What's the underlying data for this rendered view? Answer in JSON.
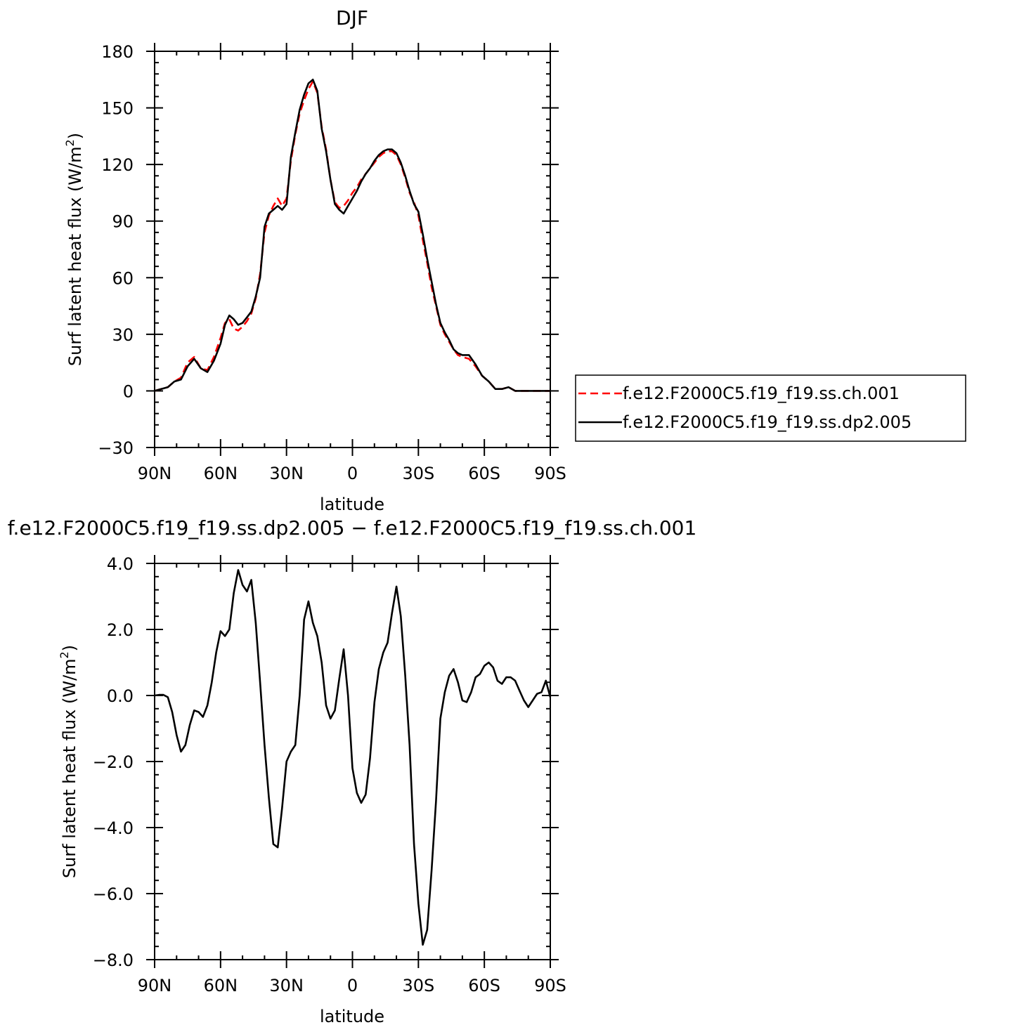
{
  "chart_data": [
    {
      "type": "line",
      "title": "DJF",
      "xlabel": "latitude",
      "ylabel_main": "Surf latent heat flux",
      "ylabel_units": "(W/m",
      "ylabel_sup": "2",
      "ylabel_close": ")",
      "xlim": [
        -90,
        90
      ],
      "ylim": [
        -30,
        180
      ],
      "x_ticks": [
        {
          "value": -90,
          "label": "90N"
        },
        {
          "value": -60,
          "label": "60N"
        },
        {
          "value": -30,
          "label": "30N"
        },
        {
          "value": 0,
          "label": "0"
        },
        {
          "value": 30,
          "label": "30S"
        },
        {
          "value": 60,
          "label": "60S"
        },
        {
          "value": 90,
          "label": "90S"
        }
      ],
      "y_ticks": [
        {
          "value": -30,
          "label": "−30"
        },
        {
          "value": 0,
          "label": "0"
        },
        {
          "value": 30,
          "label": "30"
        },
        {
          "value": 60,
          "label": "60"
        },
        {
          "value": 90,
          "label": "90"
        },
        {
          "value": 120,
          "label": "120"
        },
        {
          "value": 150,
          "label": "150"
        },
        {
          "value": 180,
          "label": "180"
        }
      ],
      "legend_placement": "right",
      "series": [
        {
          "name": "f.e12.F2000C5.f19_f19.ss.ch.001",
          "color": "#ff0000",
          "dash": "dashed",
          "x": [
            -90,
            -87,
            -84,
            -81,
            -78,
            -75,
            -72,
            -69,
            -66,
            -63,
            -60,
            -58,
            -56,
            -54,
            -52,
            -50,
            -48,
            -46,
            -44,
            -42,
            -40,
            -38,
            -36,
            -34,
            -32,
            -30,
            -28,
            -26,
            -24,
            -22,
            -20,
            -18,
            -16,
            -14,
            -12,
            -10,
            -8,
            -6,
            -4,
            -2,
            0,
            2,
            4,
            6,
            8,
            10,
            12,
            14,
            16,
            18,
            20,
            22,
            24,
            26,
            28,
            30,
            32,
            34,
            36,
            38,
            40,
            42,
            44,
            46,
            48,
            50,
            53,
            56,
            59,
            62,
            65,
            68,
            71,
            74,
            77,
            80,
            83,
            86,
            90
          ],
          "y": [
            0,
            1,
            2,
            5,
            7,
            15,
            18,
            12,
            11,
            18,
            28,
            36,
            38,
            33,
            32,
            34,
            37,
            41,
            49,
            62,
            84,
            93,
            98,
            102,
            98,
            102,
            122,
            136,
            147,
            154,
            160,
            164,
            158,
            140,
            128,
            112,
            100,
            97,
            98,
            101,
            105,
            108,
            112,
            115,
            118,
            121,
            124,
            126,
            127,
            127,
            125,
            120,
            113,
            105,
            100,
            93,
            80,
            68,
            55,
            45,
            35,
            30,
            26,
            22,
            19,
            18,
            17,
            13,
            8,
            5,
            1,
            1,
            2,
            0,
            0,
            0,
            0,
            0,
            0
          ]
        },
        {
          "name": "f.e12.F2000C5.f19_f19.ss.dp2.005",
          "color": "#000000",
          "dash": "solid",
          "x": [
            -90,
            -87,
            -84,
            -81,
            -78,
            -75,
            -72,
            -69,
            -66,
            -63,
            -60,
            -58,
            -56,
            -54,
            -52,
            -50,
            -48,
            -46,
            -44,
            -42,
            -40,
            -38,
            -36,
            -34,
            -32,
            -30,
            -28,
            -26,
            -24,
            -22,
            -20,
            -18,
            -16,
            -14,
            -12,
            -10,
            -8,
            -6,
            -4,
            -2,
            0,
            2,
            4,
            6,
            8,
            10,
            12,
            14,
            16,
            18,
            20,
            22,
            24,
            26,
            28,
            30,
            32,
            34,
            36,
            38,
            40,
            42,
            44,
            46,
            48,
            50,
            53,
            56,
            59,
            62,
            65,
            68,
            71,
            74,
            77,
            80,
            83,
            86,
            90
          ],
          "y": [
            0,
            1,
            2,
            5,
            6,
            13,
            17,
            12,
            10,
            16,
            25,
            35,
            40,
            38,
            35,
            36,
            39,
            42,
            50,
            60,
            87,
            94,
            96,
            98,
            96,
            99,
            124,
            137,
            149,
            157,
            163,
            165,
            159,
            139,
            127,
            112,
            99,
            96,
            94,
            98,
            102,
            106,
            111,
            115,
            118,
            122,
            125,
            127,
            128,
            128,
            126,
            121,
            114,
            106,
            99,
            95,
            83,
            70,
            58,
            46,
            36,
            31,
            27,
            22,
            20,
            19,
            19,
            14,
            8,
            5,
            1,
            1,
            2,
            0,
            0,
            0,
            0,
            0,
            0
          ]
        }
      ]
    },
    {
      "type": "line",
      "title": "f.e12.F2000C5.f19_f19.ss.dp2.005 − f.e12.F2000C5.f19_f19.ss.ch.001",
      "xlabel": "latitude",
      "ylabel_main": "Surf latent heat flux",
      "ylabel_units": "(W/m",
      "ylabel_sup": "2",
      "ylabel_close": ")",
      "xlim": [
        -90,
        90
      ],
      "ylim": [
        -8,
        4
      ],
      "x_ticks": [
        {
          "value": -90,
          "label": "90N"
        },
        {
          "value": -60,
          "label": "60N"
        },
        {
          "value": -30,
          "label": "30N"
        },
        {
          "value": 0,
          "label": "0"
        },
        {
          "value": 30,
          "label": "30S"
        },
        {
          "value": 60,
          "label": "60S"
        },
        {
          "value": 90,
          "label": "90S"
        }
      ],
      "y_ticks": [
        {
          "value": -8,
          "label": "−8.0"
        },
        {
          "value": -6,
          "label": "−6.0"
        },
        {
          "value": -4,
          "label": "−4.0"
        },
        {
          "value": -2,
          "label": "−2.0"
        },
        {
          "value": 0,
          "label": "0.0"
        },
        {
          "value": 2,
          "label": "2.0"
        },
        {
          "value": 4,
          "label": "4.0"
        }
      ],
      "series": [
        {
          "name": "",
          "color": "#000000",
          "dash": "solid",
          "x": [
            -90,
            -88,
            -86,
            -84,
            -82,
            -80,
            -78,
            -76,
            -74,
            -72,
            -70,
            -68,
            -66,
            -64,
            -62,
            -60,
            -58,
            -56,
            -54,
            -52,
            -50,
            -48,
            -46,
            -44,
            -42,
            -40,
            -38,
            -36,
            -34,
            -32,
            -30,
            -28,
            -26,
            -24,
            -22,
            -20,
            -18,
            -16,
            -14,
            -12,
            -10,
            -8,
            -6,
            -4,
            -2,
            0,
            2,
            4,
            6,
            8,
            10,
            12,
            14,
            16,
            18,
            20,
            22,
            24,
            26,
            28,
            30,
            32,
            34,
            36,
            38,
            40,
            42,
            44,
            46,
            48,
            50,
            52,
            54,
            56,
            58,
            60,
            62,
            64,
            66,
            68,
            70,
            72,
            74,
            76,
            78,
            80,
            82,
            84,
            86,
            88,
            90
          ],
          "y": [
            0.0,
            0.02,
            0.02,
            -0.05,
            -0.5,
            -1.2,
            -1.7,
            -1.5,
            -0.9,
            -0.45,
            -0.5,
            -0.65,
            -0.3,
            0.4,
            1.3,
            1.95,
            1.8,
            2.0,
            3.1,
            3.8,
            3.35,
            3.15,
            3.5,
            2.2,
            0.4,
            -1.5,
            -3.1,
            -4.5,
            -4.6,
            -3.4,
            -2.0,
            -1.7,
            -1.5,
            0.0,
            2.3,
            2.85,
            2.2,
            1.8,
            1.0,
            -0.3,
            -0.7,
            -0.45,
            0.5,
            1.4,
            0.0,
            -2.2,
            -2.95,
            -3.25,
            -3.0,
            -1.9,
            -0.2,
            0.8,
            1.3,
            1.6,
            2.5,
            3.3,
            2.4,
            0.6,
            -1.5,
            -4.5,
            -6.3,
            -7.55,
            -7.1,
            -5.3,
            -3.2,
            -0.7,
            0.1,
            0.6,
            0.8,
            0.4,
            -0.15,
            -0.2,
            0.1,
            0.55,
            0.65,
            0.9,
            1.0,
            0.85,
            0.45,
            0.35,
            0.55,
            0.55,
            0.45,
            0.15,
            -0.15,
            -0.35,
            -0.15,
            0.05,
            0.1,
            0.45,
            -0.05
          ]
        }
      ]
    }
  ]
}
